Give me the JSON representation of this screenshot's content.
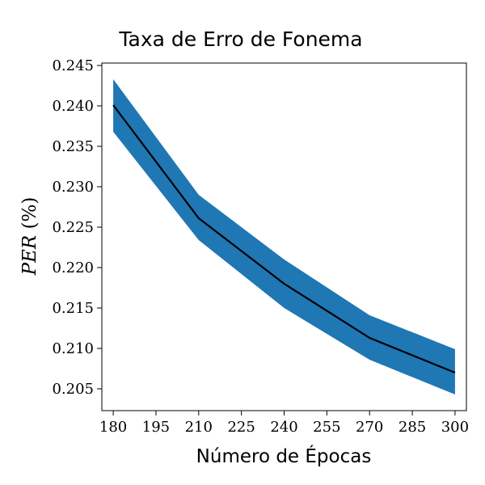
{
  "chart_data": {
    "type": "area",
    "title": "Taxa de Erro de Fonema",
    "xlabel": "Número de Épocas",
    "ylabel": "PER (%)",
    "ylabel_italic": "PER",
    "ylabel_suffix": " (%)",
    "x": [
      180,
      210,
      240,
      270,
      300
    ],
    "series": [
      {
        "role": "mean",
        "values": [
          0.2401,
          0.2261,
          0.218,
          0.2113,
          0.207
        ],
        "color": "#000000"
      },
      {
        "role": "upper",
        "values": [
          0.2433,
          0.229,
          0.221,
          0.2141,
          0.2099
        ]
      },
      {
        "role": "lower",
        "values": [
          0.2368,
          0.2234,
          0.215,
          0.2086,
          0.2043
        ]
      }
    ],
    "band_color": "#1f77b4",
    "xlim": [
      176,
      304
    ],
    "ylim": [
      0.2023,
      0.2453
    ],
    "xticks": [
      180,
      195,
      210,
      225,
      240,
      255,
      270,
      285,
      300
    ],
    "xtick_labels": [
      "180",
      "195",
      "210",
      "225",
      "240",
      "255",
      "270",
      "285",
      "300"
    ],
    "yticks": [
      0.205,
      0.21,
      0.215,
      0.22,
      0.225,
      0.23,
      0.235,
      0.24,
      0.245
    ],
    "ytick_labels": [
      "0.205",
      "0.210",
      "0.215",
      "0.220",
      "0.225",
      "0.230",
      "0.235",
      "0.240",
      "0.245"
    ],
    "grid": false,
    "legend": "none"
  }
}
